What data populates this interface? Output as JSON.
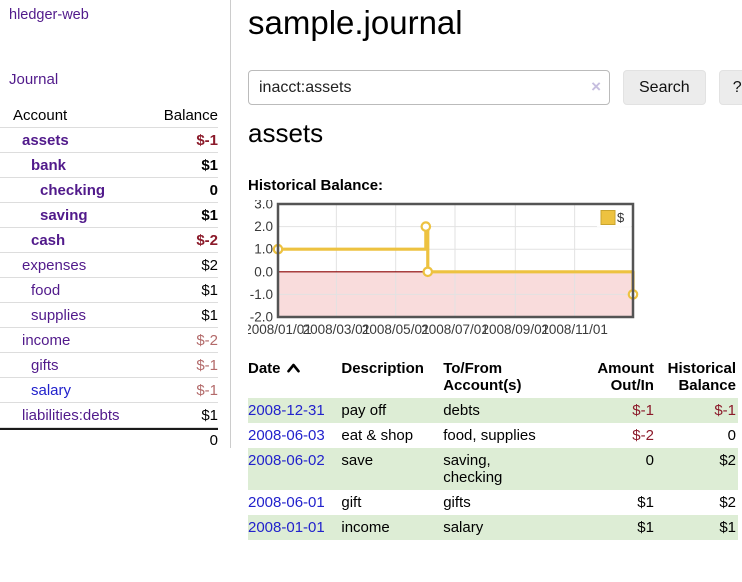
{
  "app": {
    "title": "hledger-web"
  },
  "colors": {
    "link_purple": "#511a8b",
    "link_blue": "#2222cc",
    "negative_strong": "#8b1a2a",
    "negative_muted": "#b36a6a",
    "row_green": "#ddedd5",
    "series_gold": "#edc240",
    "chart_negative_region": "#f9dcdc",
    "zero_line": "#8b0000"
  },
  "sidebar": {
    "journal_link": "Journal",
    "accounts_table": {
      "account_header": "Account",
      "balance_header": "Balance",
      "rows": [
        {
          "name": "assets",
          "balance": "$-1",
          "depth": 1,
          "bold": true,
          "balance_style": "neg-strong",
          "link_style": "purple"
        },
        {
          "name": "bank",
          "balance": "$1",
          "depth": 2,
          "bold": true,
          "balance_style": "normal",
          "link_style": "purple"
        },
        {
          "name": "checking",
          "balance": "0",
          "depth": 3,
          "bold": true,
          "balance_style": "normal",
          "link_style": "purple"
        },
        {
          "name": "saving",
          "balance": "$1",
          "depth": 3,
          "bold": true,
          "balance_style": "normal",
          "link_style": "purple"
        },
        {
          "name": "cash",
          "balance": "$-2",
          "depth": 2,
          "bold": true,
          "balance_style": "neg-strong",
          "link_style": "purple"
        },
        {
          "name": "expenses",
          "balance": "$2",
          "depth": 1,
          "bold": false,
          "balance_style": "normal",
          "link_style": "purple"
        },
        {
          "name": "food",
          "balance": "$1",
          "depth": 2,
          "bold": false,
          "balance_style": "normal",
          "link_style": "purple"
        },
        {
          "name": "supplies",
          "balance": "$1",
          "depth": 2,
          "bold": false,
          "balance_style": "normal",
          "link_style": "purple"
        },
        {
          "name": "income",
          "balance": "$-2",
          "depth": 1,
          "bold": false,
          "balance_style": "neg-muted",
          "link_style": "purple"
        },
        {
          "name": "gifts",
          "balance": "$-1",
          "depth": 2,
          "bold": false,
          "balance_style": "neg-muted",
          "link_style": "purple"
        },
        {
          "name": "salary",
          "balance": "$-1",
          "depth": 2,
          "bold": false,
          "balance_style": "neg-muted",
          "link_style": "blue"
        },
        {
          "name": "liabilities:debts",
          "balance": "$1",
          "depth": 1,
          "bold": false,
          "balance_style": "normal",
          "link_style": "purple"
        }
      ],
      "total": "0"
    }
  },
  "main": {
    "title": "sample.journal",
    "search": {
      "value": "inacct:assets",
      "clear_icon": "×",
      "search_button": "Search",
      "help_button": "?"
    },
    "account_heading": "assets",
    "chart_heading": "Historical Balance:"
  },
  "chart_data": {
    "type": "line",
    "step_style": "step-after",
    "title": "Historical Balance:",
    "series": [
      {
        "name": "$",
        "color": "#edc240",
        "points": [
          [
            "2008-01-01",
            1.0
          ],
          [
            "2008-06-01",
            2.0
          ],
          [
            "2008-06-03",
            0.0
          ],
          [
            "2008-12-31",
            -1.0
          ]
        ]
      }
    ],
    "x_domain": [
      "2008-01-01",
      "2008-12-31"
    ],
    "x_ticks": [
      "2008/01/01",
      "2008/03/01",
      "2008/05/01",
      "2008/07/01",
      "2008/09/01",
      "2008/11/01"
    ],
    "y_ticks": [
      "3.0",
      "2.0",
      "1.0",
      "0.0",
      "-1.0",
      "-2.0"
    ],
    "ylim": [
      -2,
      3
    ],
    "grid": true,
    "legend": {
      "label": "$",
      "position": "top-right"
    }
  },
  "transactions": {
    "headers": {
      "date": "Date",
      "sort_icon": "chevron-up",
      "description": "Description",
      "tofrom": "To/From Account(s)",
      "amount": "Amount Out/In",
      "historical": "Historical Balance"
    },
    "rows": [
      {
        "date": "2008-12-31",
        "description": "pay off",
        "accounts": "debts",
        "amount": "$-1",
        "amount_negative": true,
        "historical": "$-1",
        "historical_negative": true
      },
      {
        "date": "2008-06-03",
        "description": "eat & shop",
        "accounts": "food, supplies",
        "amount": "$-2",
        "amount_negative": true,
        "historical": "0",
        "historical_negative": false
      },
      {
        "date": "2008-06-02",
        "description": "save",
        "accounts": "saving,\nchecking",
        "amount": "0",
        "amount_negative": false,
        "historical": "$2",
        "historical_negative": false
      },
      {
        "date": "2008-06-01",
        "description": "gift",
        "accounts": "gifts",
        "amount": "$1",
        "amount_negative": false,
        "historical": "$2",
        "historical_negative": false
      },
      {
        "date": "2008-01-01",
        "description": "income",
        "accounts": "salary",
        "amount": "$1",
        "amount_negative": false,
        "historical": "$1",
        "historical_negative": false
      }
    ]
  }
}
